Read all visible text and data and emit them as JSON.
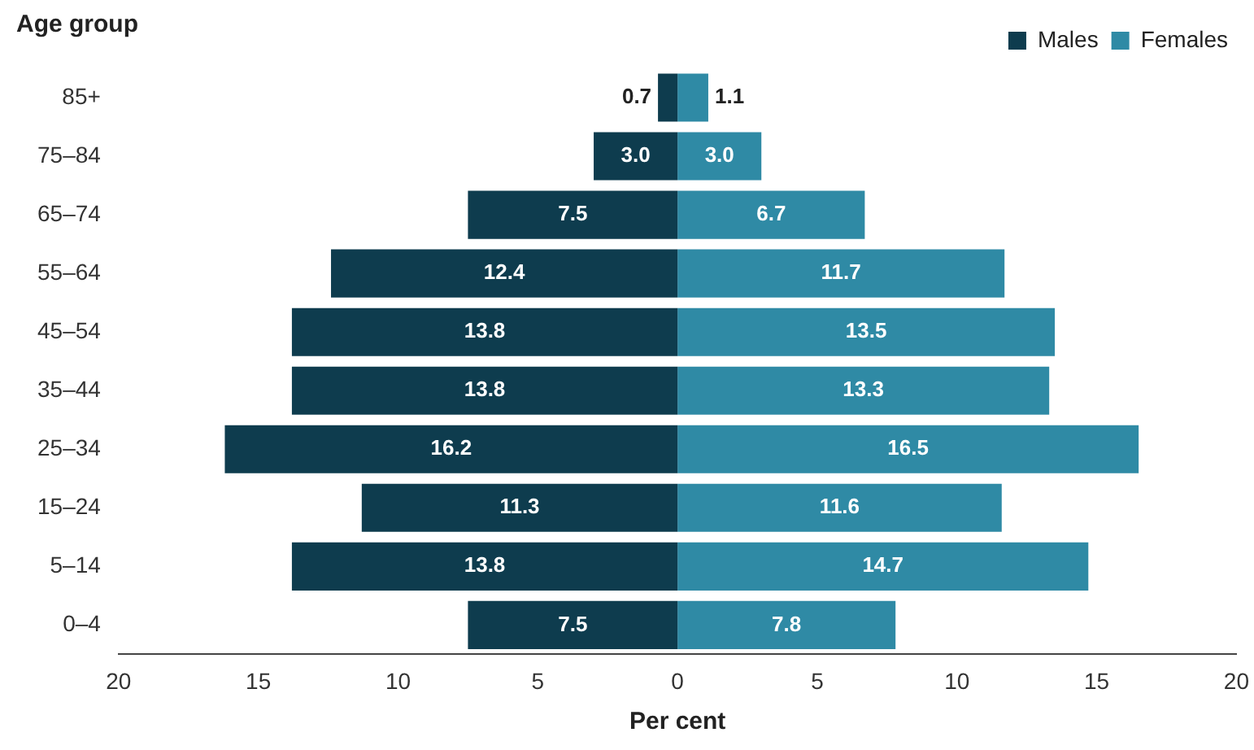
{
  "chart_data": {
    "type": "bar",
    "orientation": "horizontal",
    "ylabel": "Age group",
    "xlabel": "Per cent",
    "categories": [
      "85+",
      "75–84",
      "65–74",
      "55–64",
      "45–54",
      "35–44",
      "25–34",
      "15–24",
      "5–14",
      "0–4"
    ],
    "series": [
      {
        "name": "Males",
        "color": "#0e3c4e",
        "values": [
          0.7,
          3.0,
          7.5,
          12.4,
          13.8,
          13.8,
          16.2,
          11.3,
          13.8,
          7.5
        ],
        "base": [
          -0.7,
          -3.0,
          -7.5,
          -12.4,
          -13.8,
          -13.8,
          -16.2,
          -11.3,
          -13.8,
          -7.5
        ],
        "value_labels": [
          "0.7",
          "3.0",
          "7.5",
          "12.4",
          "13.8",
          "13.8",
          "16.2",
          "11.3",
          "13.8",
          "7.5"
        ]
      },
      {
        "name": "Females",
        "color": "#2f8aa5",
        "values": [
          1.1,
          3.0,
          6.7,
          11.7,
          13.5,
          13.3,
          16.5,
          11.6,
          14.7,
          7.8
        ],
        "value_labels": [
          "1.1",
          "3.0",
          "6.7",
          "11.7",
          "13.5",
          "13.3",
          "16.5",
          "11.6",
          "14.7",
          "7.8"
        ]
      }
    ],
    "xlim": [
      -20,
      20
    ],
    "xticks": [
      {
        "value": -20,
        "label": "20"
      },
      {
        "value": -15,
        "label": "15"
      },
      {
        "value": -10,
        "label": "10"
      },
      {
        "value": -5,
        "label": "5"
      },
      0,
      5,
      10,
      15,
      20
    ],
    "legend": "top right",
    "grid": false
  }
}
